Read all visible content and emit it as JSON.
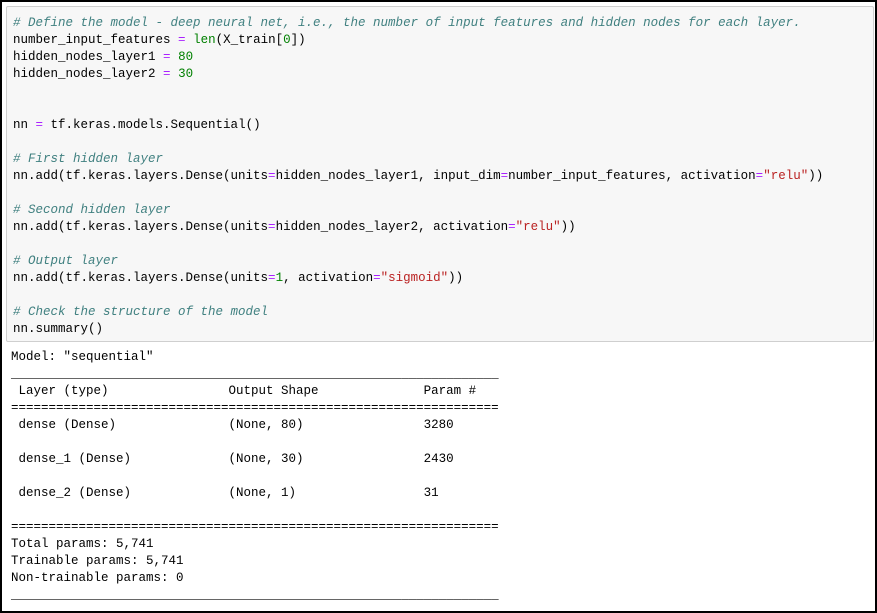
{
  "colors": {
    "comment": "#408080",
    "operator": "#aa22ff",
    "number": "#008000",
    "builtin": "#008000",
    "string": "#ba2121",
    "cell_background": "#f7f7f7"
  },
  "code_cell": {
    "lines": [
      [
        [
          "# Define the model - deep neural net, i.e., the number of input features and hidden nodes for each layer.",
          "c"
        ]
      ],
      [
        [
          "number_input_features ",
          ""
        ],
        [
          "=",
          "o"
        ],
        [
          " ",
          ""
        ],
        [
          "len",
          "b"
        ],
        [
          "(X_train[",
          ""
        ],
        [
          "0",
          "n"
        ],
        [
          "])",
          ""
        ]
      ],
      [
        [
          "hidden_nodes_layer1 ",
          ""
        ],
        [
          "=",
          "o"
        ],
        [
          " ",
          ""
        ],
        [
          "80",
          "n"
        ]
      ],
      [
        [
          "hidden_nodes_layer2 ",
          ""
        ],
        [
          "=",
          "o"
        ],
        [
          " ",
          ""
        ],
        [
          "30",
          "n"
        ]
      ],
      [],
      [],
      [
        [
          "nn ",
          ""
        ],
        [
          "=",
          "o"
        ],
        [
          " tf.keras.models.Sequential()",
          ""
        ]
      ],
      [],
      [
        [
          "# First hidden layer",
          "c"
        ]
      ],
      [
        [
          "nn.add(tf.keras.layers.Dense(units",
          ""
        ],
        [
          "=",
          "o"
        ],
        [
          "hidden_nodes_layer1, input_dim",
          ""
        ],
        [
          "=",
          "o"
        ],
        [
          "number_input_features, activation",
          ""
        ],
        [
          "=",
          "o"
        ],
        [
          "\"relu\"",
          "s"
        ],
        [
          "))",
          ""
        ]
      ],
      [],
      [
        [
          "# Second hidden layer",
          "c"
        ]
      ],
      [
        [
          "nn.add(tf.keras.layers.Dense(units",
          ""
        ],
        [
          "=",
          "o"
        ],
        [
          "hidden_nodes_layer2, activation",
          ""
        ],
        [
          "=",
          "o"
        ],
        [
          "\"relu\"",
          "s"
        ],
        [
          "))",
          ""
        ]
      ],
      [],
      [
        [
          "# Output layer",
          "c"
        ]
      ],
      [
        [
          "nn.add(tf.keras.layers.Dense(units",
          ""
        ],
        [
          "=",
          "o"
        ],
        [
          "1",
          "n"
        ],
        [
          ", activation",
          ""
        ],
        [
          "=",
          "o"
        ],
        [
          "\"sigmoid\"",
          "s"
        ],
        [
          "))",
          ""
        ]
      ],
      [],
      [
        [
          "# Check the structure of the model",
          "c"
        ]
      ],
      [
        [
          "nn.summary()",
          ""
        ]
      ]
    ]
  },
  "output": {
    "lines": [
      "Model: \"sequential\"",
      "_________________________________________________________________",
      " Layer (type)                Output Shape              Param #   ",
      "=================================================================",
      " dense (Dense)               (None, 80)                3280      ",
      "                                                                 ",
      " dense_1 (Dense)             (None, 30)                2430      ",
      "                                                                 ",
      " dense_2 (Dense)             (None, 1)                 31        ",
      "                                                                 ",
      "=================================================================",
      "Total params: 5,741",
      "Trainable params: 5,741",
      "Non-trainable params: 0",
      "_________________________________________________________________"
    ]
  }
}
